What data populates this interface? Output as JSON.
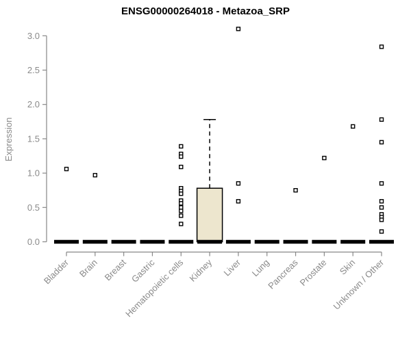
{
  "chart_data": {
    "type": "boxplot",
    "title": "ENSG00000264018 - Metazoa_SRP",
    "ylabel": "Expression",
    "xlabel": "",
    "ylim": [
      0.0,
      3.1
    ],
    "yticks": [
      0.0,
      0.5,
      1.0,
      1.5,
      2.0,
      2.5,
      3.0
    ],
    "grid": false,
    "legend": false,
    "categories": [
      "Bladder",
      "Brain",
      "Breast",
      "Gastric",
      "Hematopoietic cells",
      "Kidney",
      "Liver",
      "Lung",
      "Pancreas",
      "Prostate",
      "Skin",
      "Unknown / Other"
    ],
    "boxes": [
      {
        "category": "Bladder",
        "median": 0,
        "q1": 0,
        "q3": 0,
        "whisker_low": 0,
        "whisker_high": 0,
        "outliers": [
          1.06
        ]
      },
      {
        "category": "Brain",
        "median": 0,
        "q1": 0,
        "q3": 0,
        "whisker_low": 0,
        "whisker_high": 0,
        "outliers": [
          0.97
        ]
      },
      {
        "category": "Breast",
        "median": 0,
        "q1": 0,
        "q3": 0,
        "whisker_low": 0,
        "whisker_high": 0,
        "outliers": []
      },
      {
        "category": "Gastric",
        "median": 0,
        "q1": 0,
        "q3": 0,
        "whisker_low": 0,
        "whisker_high": 0,
        "outliers": []
      },
      {
        "category": "Hematopoietic cells",
        "median": 0,
        "q1": 0,
        "q3": 0,
        "whisker_low": 0,
        "whisker_high": 0,
        "outliers": [
          1.39,
          1.28,
          1.24,
          1.09,
          0.78,
          0.74,
          0.7,
          0.6,
          0.56,
          0.5,
          0.45,
          0.38,
          0.26
        ]
      },
      {
        "category": "Kidney",
        "median": 0,
        "q1": 0,
        "q3": 0.78,
        "whisker_low": 0,
        "whisker_high": 1.78,
        "outliers": []
      },
      {
        "category": "Liver",
        "median": 0,
        "q1": 0,
        "q3": 0,
        "whisker_low": 0,
        "whisker_high": 0,
        "outliers": [
          3.1,
          0.85,
          0.59
        ]
      },
      {
        "category": "Lung",
        "median": 0,
        "q1": 0,
        "q3": 0,
        "whisker_low": 0,
        "whisker_high": 0,
        "outliers": []
      },
      {
        "category": "Pancreas",
        "median": 0,
        "q1": 0,
        "q3": 0,
        "whisker_low": 0,
        "whisker_high": 0,
        "outliers": [
          0.75
        ]
      },
      {
        "category": "Prostate",
        "median": 0,
        "q1": 0,
        "q3": 0,
        "whisker_low": 0,
        "whisker_high": 0,
        "outliers": [
          1.22
        ]
      },
      {
        "category": "Skin",
        "median": 0,
        "q1": 0,
        "q3": 0,
        "whisker_low": 0,
        "whisker_high": 0,
        "outliers": [
          1.68
        ]
      },
      {
        "category": "Unknown / Other",
        "median": 0,
        "q1": 0,
        "q3": 0,
        "whisker_low": 0,
        "whisker_high": 0,
        "outliers": [
          2.84,
          1.78,
          1.45,
          0.85,
          0.59,
          0.5,
          0.4,
          0.36,
          0.32,
          0.15
        ]
      }
    ],
    "colors": {
      "box_fill": "#EDE6CE",
      "box_border": "#000000",
      "median_bar": "#000000",
      "whisker": "#000000",
      "outlier_stroke": "#000000",
      "outlier_fill": "#ffffff",
      "axis": "#878787",
      "tick_label": "#8a8a8a",
      "title": "#000000"
    }
  }
}
